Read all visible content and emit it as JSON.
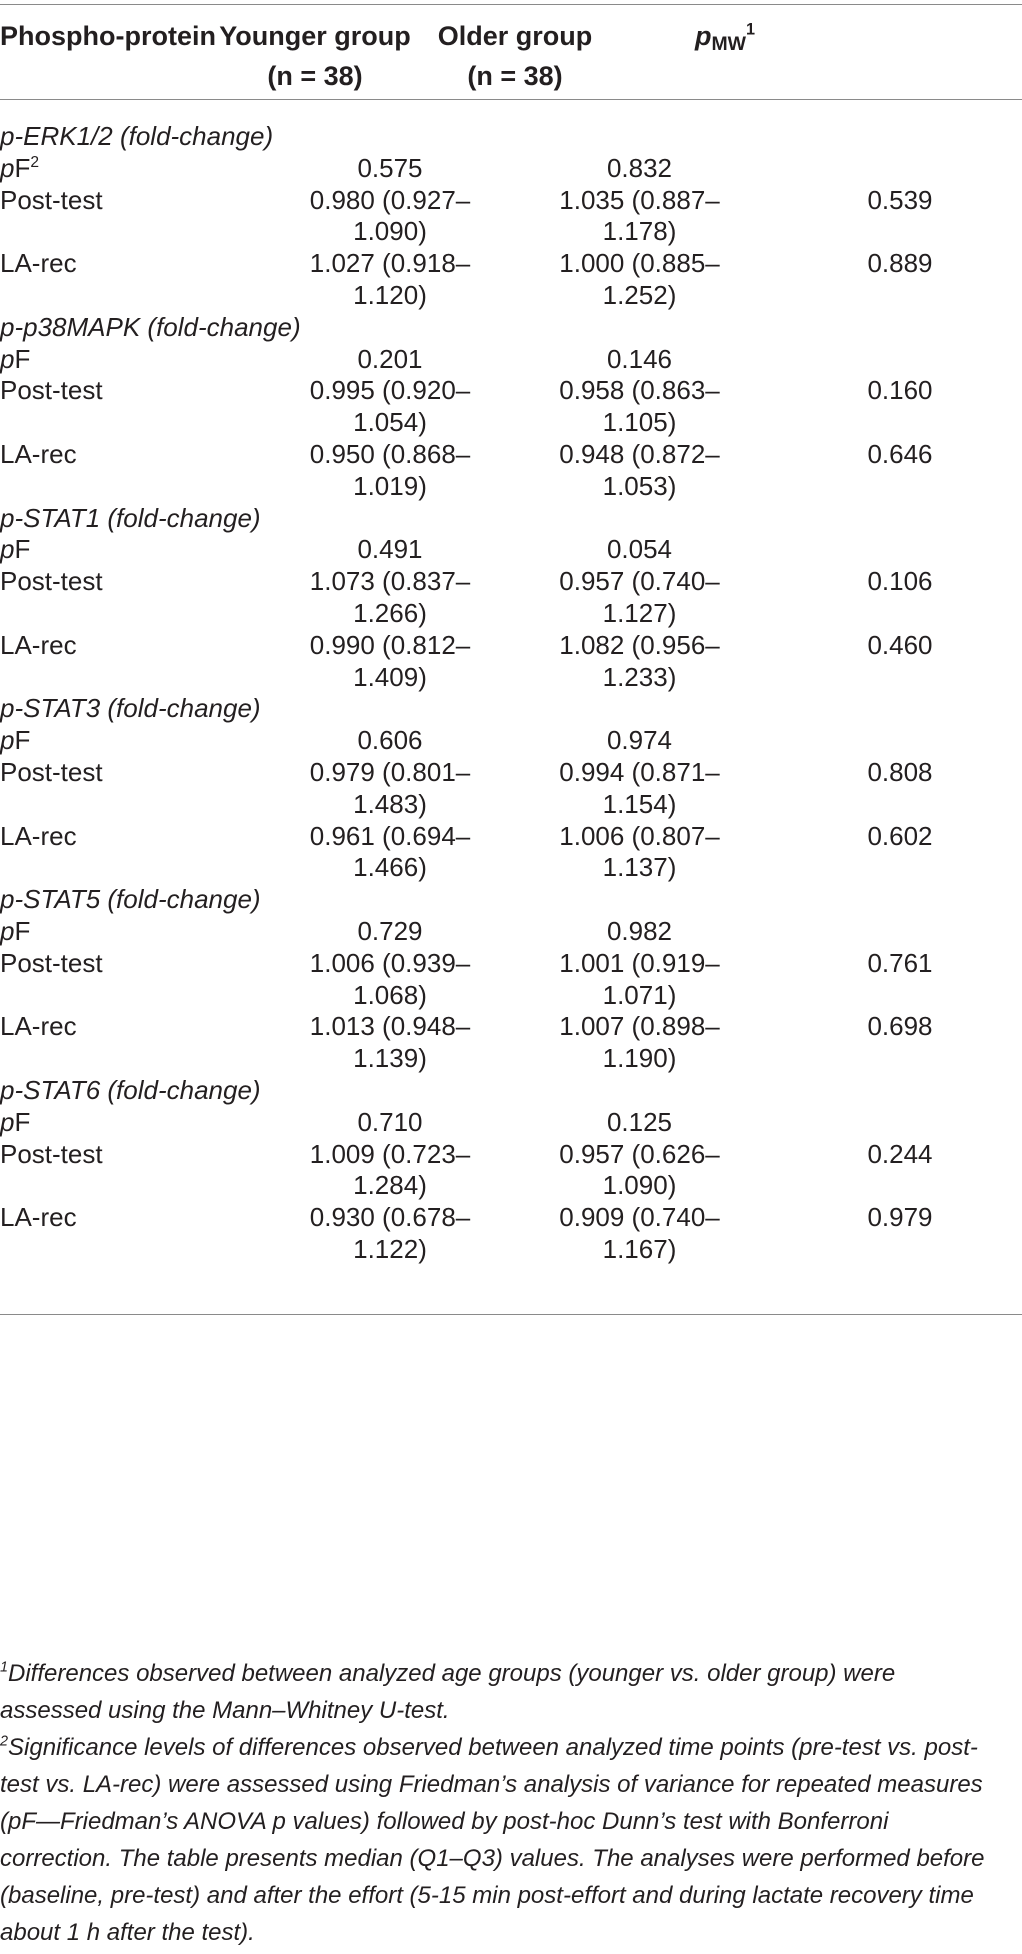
{
  "header": {
    "col0": "Phospho-protein",
    "col1_line1": "Younger group",
    "col1_line2": "(n = 38)",
    "col2_line1": "Older group",
    "col2_line2": "(n = 38)",
    "col3_base": "p",
    "col3_sub": "MW",
    "col3_sup": "1"
  },
  "groups": [
    {
      "title": "p-ERK1/2 (fold-change)",
      "pf_label": "pF",
      "pf_sup": "2",
      "pf": [
        "0.575",
        "0.832"
      ],
      "rows": [
        {
          "label": "Post-test",
          "younger": [
            "0.980 (0.927–",
            "1.090)"
          ],
          "older": [
            "1.035 (0.887–",
            "1.178)"
          ],
          "p": "0.539"
        },
        {
          "label": "LA-rec",
          "younger": [
            "1.027 (0.918–",
            "1.120)"
          ],
          "older": [
            "1.000 (0.885–",
            "1.252)"
          ],
          "p": "0.889"
        }
      ]
    },
    {
      "title": "p-p38MAPK (fold-change)",
      "pf_label": "pF",
      "pf": [
        "0.201",
        "0.146"
      ],
      "rows": [
        {
          "label": "Post-test",
          "younger": [
            "0.995 (0.920–",
            "1.054)"
          ],
          "older": [
            "0.958 (0.863–",
            "1.105)"
          ],
          "p": "0.160"
        },
        {
          "label": "LA-rec",
          "younger": [
            "0.950 (0.868–",
            "1.019)"
          ],
          "older": [
            "0.948 (0.872–",
            "1.053)"
          ],
          "p": "0.646"
        }
      ]
    },
    {
      "title": "p-STAT1 (fold-change)",
      "pf_label": "pF",
      "pf": [
        "0.491",
        "0.054"
      ],
      "rows": [
        {
          "label": "Post-test",
          "younger": [
            "1.073 (0.837–",
            "1.266)"
          ],
          "older": [
            "0.957 (0.740–",
            "1.127)"
          ],
          "p": "0.106"
        },
        {
          "label": "LA-rec",
          "younger": [
            "0.990 (0.812–",
            "1.409)"
          ],
          "older": [
            "1.082 (0.956–",
            "1.233)"
          ],
          "p": "0.460"
        }
      ]
    },
    {
      "title": "p-STAT3 (fold-change)",
      "pf_label": "pF",
      "pf": [
        "0.606",
        "0.974"
      ],
      "rows": [
        {
          "label": "Post-test",
          "younger": [
            "0.979 (0.801–",
            "1.483)"
          ],
          "older": [
            "0.994 (0.871–",
            "1.154)"
          ],
          "p": "0.808"
        },
        {
          "label": "LA-rec",
          "younger": [
            "0.961 (0.694–",
            "1.466)"
          ],
          "older": [
            "1.006 (0.807–",
            "1.137)"
          ],
          "p": "0.602"
        }
      ]
    },
    {
      "title": "p-STAT5 (fold-change)",
      "pf_label": "pF",
      "pf": [
        "0.729",
        "0.982"
      ],
      "rows": [
        {
          "label": "Post-test",
          "younger": [
            "1.006 (0.939–",
            "1.068)"
          ],
          "older": [
            "1.001 (0.919–",
            "1.071)"
          ],
          "p": "0.761"
        },
        {
          "label": "LA-rec",
          "younger": [
            "1.013 (0.948–",
            "1.139)"
          ],
          "older": [
            "1.007 (0.898–",
            "1.190)"
          ],
          "p": "0.698"
        }
      ]
    },
    {
      "title": "p-STAT6 (fold-change)",
      "pf_label": "pF",
      "pf": [
        "0.710",
        "0.125"
      ],
      "rows": [
        {
          "label": "Post-test",
          "younger": [
            "1.009 (0.723–",
            "1.284)"
          ],
          "older": [
            "0.957 (0.626–",
            "1.090)"
          ],
          "p": "0.244"
        },
        {
          "label": "LA-rec",
          "younger": [
            "0.930 (0.678–",
            "1.122)"
          ],
          "older": [
            "0.909 (0.740–",
            "1.167)"
          ],
          "p": "0.979"
        }
      ]
    }
  ],
  "footnotes": [
    {
      "mark": "1",
      "text": "Differences observed between analyzed age groups (younger vs. older group) were assessed using the Mann–Whitney U-test."
    },
    {
      "mark": "2",
      "text": "Significance levels of differences observed between analyzed time points (pre-test vs. post-test vs. LA-rec) were assessed using Friedman’s analysis of variance for repeated measures (pF—Friedman’s ANOVA p values) followed by post-hoc Dunn’s test with Bonferroni correction. The table presents median (Q1–Q3) values. The analyses were performed before (baseline, pre-test) and after the effort (5-15 min post-effort and during lactate recovery time about 1 h after the test)."
    }
  ]
}
